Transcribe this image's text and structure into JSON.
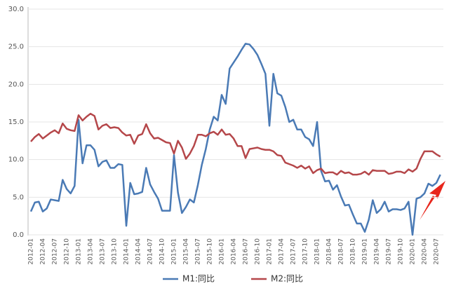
{
  "chart_data": {
    "type": "line",
    "categories": [
      "2012-01",
      null,
      null,
      "2012-04",
      null,
      null,
      "2012-07",
      null,
      null,
      "2012-10",
      null,
      null,
      "2013-01",
      null,
      null,
      "2013-04",
      null,
      null,
      "2013-07",
      null,
      null,
      "2013-10",
      null,
      null,
      "2014-01",
      null,
      null,
      "2014-04",
      null,
      null,
      "2014-07",
      null,
      null,
      "2014-10",
      null,
      null,
      "2015-01",
      null,
      null,
      "2015-04",
      null,
      null,
      "2015-07",
      null,
      null,
      "2015-10",
      null,
      null,
      "2016-01",
      null,
      null,
      "2016-04",
      null,
      null,
      "2016-07",
      null,
      null,
      "2016-10",
      null,
      null,
      "2017-01",
      null,
      null,
      "2017-04",
      null,
      null,
      "2017-07",
      null,
      null,
      "2017-10",
      null,
      null,
      "2018-01",
      null,
      null,
      "2018-04",
      null,
      null,
      "2018-07",
      null,
      null,
      "2018-10",
      null,
      null,
      "2019-01",
      null,
      null,
      "2019-04",
      null,
      null,
      "2019-07",
      null,
      null,
      "2019-10",
      null,
      null,
      "2020-01",
      null,
      null,
      "2020-04",
      null,
      null,
      "2020-07",
      null
    ],
    "series": [
      {
        "name": "M1:同比",
        "color": "#4a7ab5",
        "values": [
          3.1,
          4.3,
          4.4,
          3.1,
          3.5,
          4.7,
          4.6,
          4.5,
          7.3,
          6.1,
          5.5,
          6.5,
          15.3,
          9.5,
          11.9,
          11.9,
          11.3,
          9.1,
          9.7,
          9.9,
          8.9,
          8.9,
          9.4,
          9.3,
          1.2,
          6.9,
          5.4,
          5.5,
          5.7,
          8.9,
          6.7,
          5.7,
          4.8,
          3.2,
          3.2,
          3.2,
          10.6,
          5.6,
          2.9,
          3.7,
          4.7,
          4.3,
          6.6,
          9.3,
          11.4,
          14.0,
          15.7,
          15.2,
          18.6,
          17.4,
          22.1,
          22.9,
          23.7,
          24.6,
          25.4,
          25.3,
          24.7,
          23.9,
          22.7,
          21.4,
          14.5,
          21.4,
          18.8,
          18.5,
          17.0,
          15.0,
          15.3,
          14.0,
          14.0,
          13.0,
          12.7,
          11.8,
          15.0,
          8.5,
          7.1,
          7.2,
          6.0,
          6.6,
          5.1,
          3.9,
          4.0,
          2.7,
          1.5,
          1.5,
          0.4,
          2.0,
          4.6,
          2.9,
          3.4,
          4.4,
          3.1,
          3.4,
          3.4,
          3.3,
          3.5,
          4.4,
          0.0,
          4.8,
          5.0,
          5.5,
          6.8,
          6.5,
          6.9,
          8.0
        ]
      },
      {
        "name": "M2:同比",
        "color": "#b5474a",
        "values": [
          12.4,
          13.0,
          13.4,
          12.8,
          13.2,
          13.6,
          13.9,
          13.5,
          14.8,
          14.1,
          13.9,
          13.8,
          15.9,
          15.2,
          15.7,
          16.1,
          15.8,
          14.0,
          14.5,
          14.7,
          14.2,
          14.3,
          14.2,
          13.6,
          13.2,
          13.3,
          12.1,
          13.2,
          13.4,
          14.7,
          13.5,
          12.8,
          12.9,
          12.6,
          12.3,
          12.2,
          10.8,
          12.5,
          11.6,
          10.1,
          10.8,
          11.8,
          13.3,
          13.3,
          13.1,
          13.5,
          13.7,
          13.3,
          14.0,
          13.3,
          13.4,
          12.8,
          11.8,
          11.8,
          10.2,
          11.4,
          11.5,
          11.6,
          11.4,
          11.3,
          11.3,
          11.1,
          10.6,
          10.5,
          9.6,
          9.4,
          9.2,
          8.9,
          9.2,
          8.8,
          9.1,
          8.2,
          8.6,
          8.8,
          8.2,
          8.3,
          8.3,
          8.0,
          8.5,
          8.2,
          8.3,
          8.0,
          8.0,
          8.1,
          8.4,
          8.0,
          8.6,
          8.5,
          8.5,
          8.5,
          8.1,
          8.2,
          8.4,
          8.4,
          8.2,
          8.7,
          8.4,
          8.8,
          10.1,
          11.1,
          11.1,
          11.1,
          10.7,
          10.4
        ]
      }
    ],
    "ylim": [
      0,
      30
    ],
    "yticks": [
      {
        "value": 0,
        "label": "0.0"
      },
      {
        "value": 5,
        "label": "5.0"
      },
      {
        "value": 10,
        "label": "10.0"
      },
      {
        "value": 15,
        "label": "15.0"
      },
      {
        "value": 20,
        "label": "20.0"
      },
      {
        "value": 25,
        "label": "25.0"
      },
      {
        "value": 30,
        "label": "30.0"
      }
    ],
    "grid": true,
    "legend": "bottom"
  }
}
